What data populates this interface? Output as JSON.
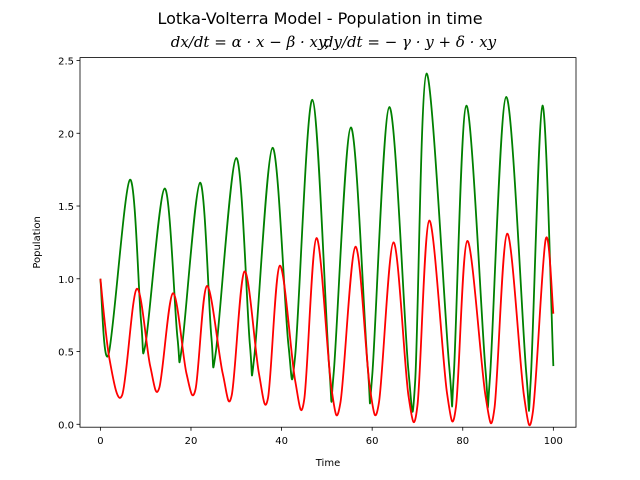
{
  "chart_data": {
    "type": "line",
    "title": "Lotka-Volterra Model - Population in time",
    "subtitle_left": "dx/dt = α · x − β · xy,",
    "subtitle_right": "dy/dt = − γ · y + δ · xy",
    "xlabel": "Time",
    "ylabel": "Population",
    "xlim": [
      -4.5,
      105
    ],
    "ylim": [
      -0.02,
      2.52
    ],
    "xticks": [
      0,
      20,
      40,
      60,
      80,
      100
    ],
    "yticks": [
      0.0,
      0.5,
      1.0,
      1.5,
      2.0,
      2.5
    ],
    "xtick_labels": [
      "0",
      "20",
      "40",
      "60",
      "80",
      "100"
    ],
    "ytick_labels": [
      "0.0",
      "0.5",
      "1.0",
      "1.5",
      "2.0",
      "2.5"
    ],
    "grid": false,
    "legend": "none",
    "series": [
      {
        "color": "#008000",
        "x": [
          0,
          1.8,
          6.5,
          9,
          10,
          14.2,
          17,
          18,
          22,
          24.5,
          25.5,
          30,
          33,
          34,
          38,
          41.5,
          43,
          46.8,
          50.5,
          51.5,
          55.3,
          59,
          60,
          63.8,
          68,
          69.5,
          72,
          77,
          78,
          80.8,
          85,
          86,
          89.6,
          94,
          95,
          97.6,
          100
        ],
        "y": [
          1.0,
          0.48,
          1.68,
          0.7,
          0.56,
          1.62,
          0.6,
          0.53,
          1.66,
          0.6,
          0.5,
          1.83,
          0.55,
          0.47,
          1.9,
          0.55,
          0.47,
          2.23,
          0.4,
          0.35,
          2.04,
          0.4,
          0.33,
          2.18,
          0.37,
          0.3,
          2.41,
          0.4,
          0.33,
          2.19,
          0.38,
          0.32,
          2.25,
          0.36,
          0.3,
          2.19,
          0.4
        ]
      },
      {
        "color": "#ff0000",
        "x": [
          0,
          2,
          4.8,
          8,
          11,
          13,
          16,
          19,
          21,
          23.5,
          27,
          29,
          31.8,
          35,
          37,
          39.6,
          43,
          45,
          47.7,
          51,
          53,
          56.3,
          59.5,
          61.5,
          64.7,
          68,
          70,
          72.6,
          76.5,
          78.5,
          81,
          85,
          87,
          89.8,
          93.5,
          95.5,
          98.3,
          100
        ],
        "y": [
          1.0,
          0.45,
          0.2,
          0.93,
          0.4,
          0.25,
          0.9,
          0.35,
          0.24,
          0.95,
          0.35,
          0.2,
          1.05,
          0.35,
          0.18,
          1.09,
          0.3,
          0.17,
          1.28,
          0.25,
          0.15,
          1.22,
          0.25,
          0.15,
          1.25,
          0.2,
          0.13,
          1.4,
          0.22,
          0.12,
          1.26,
          0.2,
          0.11,
          1.31,
          0.2,
          0.09,
          1.27,
          0.76
        ]
      }
    ]
  }
}
